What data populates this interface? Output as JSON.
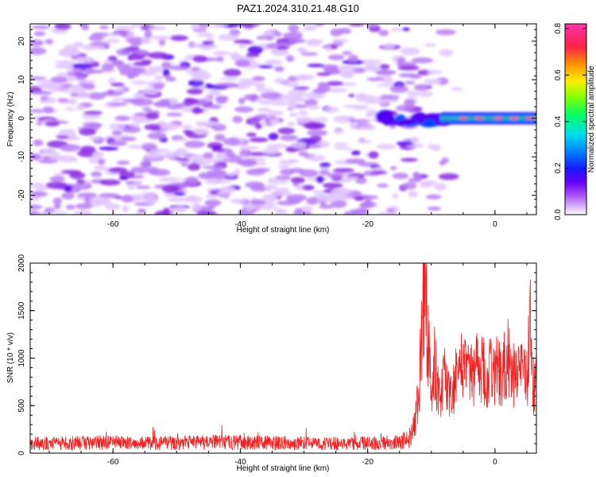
{
  "title": "PAZ1.2024.310.21.48.G10",
  "chart_data": [
    {
      "type": "heatmap",
      "xlabel": "Height of straight line (km)",
      "ylabel": "Frequency (Hz)",
      "xlim": [
        -73,
        6.5
      ],
      "ylim": [
        -25,
        24.5
      ],
      "x_ticks": [
        -60,
        -40,
        -20,
        0
      ],
      "y_ticks": [
        -20,
        -10,
        0,
        10,
        20
      ],
      "colorbar": {
        "label": "Normalized spectral amplitude",
        "range": [
          0,
          0.82
        ],
        "ticks": [
          0.0,
          0.2,
          0.4,
          0.6,
          0.8
        ]
      },
      "features": {
        "noise_region_x": [
          -73,
          -18
        ],
        "signal_start_x": -18,
        "strong_signal_x": [
          -8,
          6.5
        ],
        "signal_frequency": 0,
        "peak_amplitude": 0.8
      },
      "colors": {
        "scale": [
          "#ffffff",
          "#d6a8ff",
          "#8a2be2",
          "#3300ff",
          "#0055ff",
          "#00ddff",
          "#00ff66",
          "#aaff00",
          "#ffee00",
          "#ff8800",
          "#ff1a4a",
          "#ff33aa"
        ]
      }
    },
    {
      "type": "line",
      "xlabel": "Height of straight line (km)",
      "ylabel": "SNR (10 * v/v)",
      "xlim": [
        -73,
        6.5
      ],
      "ylim": [
        0,
        2000
      ],
      "x_ticks": [
        -60,
        -40,
        -20,
        0
      ],
      "y_ticks": [
        0,
        500,
        1000,
        1500,
        2000
      ],
      "series": [
        {
          "color": "#ee2222",
          "x": [
            -73,
            -65,
            -55,
            -45,
            -35,
            -25,
            -15,
            -13,
            -12,
            -11.5,
            -11,
            -10.8,
            -10.5,
            -10,
            -9.5,
            -9,
            -8.5,
            -8,
            -7,
            -6,
            -5,
            -4,
            -3,
            -2,
            -1,
            0,
            1,
            2,
            3,
            4,
            5,
            5.5,
            6,
            6.5
          ],
          "values": [
            100,
            110,
            105,
            115,
            110,
            100,
            110,
            200,
            600,
            1300,
            1950,
            1600,
            1100,
            750,
            1000,
            700,
            550,
            900,
            550,
            850,
            950,
            750,
            900,
            900,
            820,
            880,
            820,
            1000,
            820,
            850,
            780,
            1400,
            600,
            1100
          ]
        }
      ]
    }
  ]
}
